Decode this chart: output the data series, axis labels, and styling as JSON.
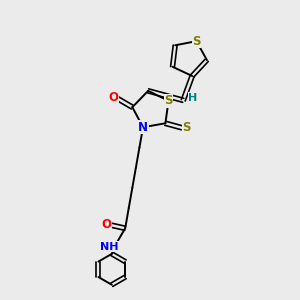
{
  "bg_color": "#ebebeb",
  "bond_color": "#000000",
  "atom_colors": {
    "S": "#808000",
    "N": "#0000ff",
    "O": "#ff0000",
    "H": "#008080",
    "C": "#000000"
  },
  "figsize": [
    3.0,
    3.0
  ],
  "dpi": 100
}
